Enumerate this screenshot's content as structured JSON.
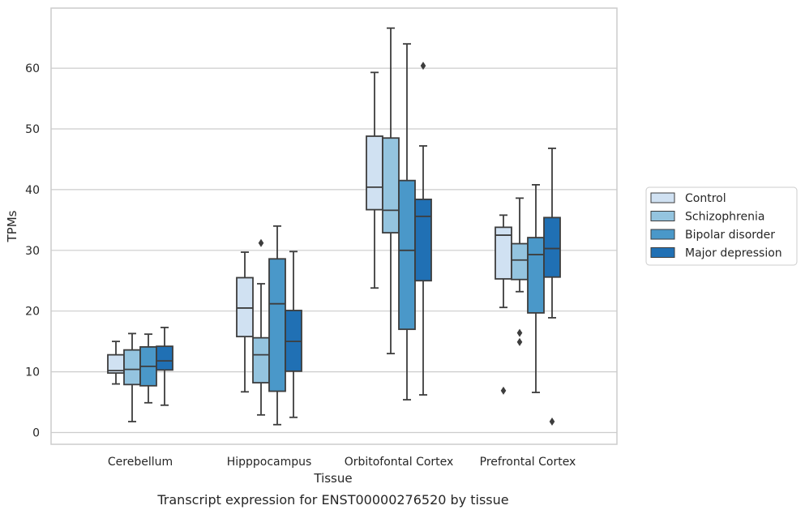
{
  "chart_data": {
    "type": "box",
    "title": "Transcript expression for ENST00000276520 by tissue",
    "xlabel": "Tissue",
    "ylabel": "TPMs",
    "ylim": [
      -2,
      70
    ],
    "yticks": [
      0,
      10,
      20,
      30,
      40,
      50,
      60
    ],
    "grid": "horizontal",
    "legend_position": "right",
    "categories": [
      "Cerebellum",
      "Hipppocampus",
      "Orbitofontal Cortex",
      "Prefrontal Cortex"
    ],
    "series": [
      {
        "name": "Control",
        "color": "#d0e1f2",
        "boxes": [
          {
            "whisker_low": 8.0,
            "q1": 9.8,
            "median": 10.2,
            "q3": 12.8,
            "whisker_high": 15.0,
            "outliers": []
          },
          {
            "whisker_low": 6.7,
            "q1": 15.8,
            "median": 20.5,
            "q3": 25.5,
            "whisker_high": 29.7,
            "outliers": []
          },
          {
            "whisker_low": 23.8,
            "q1": 36.7,
            "median": 40.4,
            "q3": 48.8,
            "whisker_high": 59.3,
            "outliers": []
          },
          {
            "whisker_low": 20.6,
            "q1": 25.3,
            "median": 32.5,
            "q3": 33.8,
            "whisker_high": 35.8,
            "outliers": [
              6.9
            ]
          }
        ]
      },
      {
        "name": "Schizophrenia",
        "color": "#94c4df",
        "boxes": [
          {
            "whisker_low": 1.8,
            "q1": 7.9,
            "median": 10.4,
            "q3": 13.6,
            "whisker_high": 16.3,
            "outliers": []
          },
          {
            "whisker_low": 2.9,
            "q1": 8.2,
            "median": 12.8,
            "q3": 15.6,
            "whisker_high": 24.5,
            "outliers": [
              31.2
            ]
          },
          {
            "whisker_low": 13.0,
            "q1": 32.9,
            "median": 36.6,
            "q3": 48.5,
            "whisker_high": 66.6,
            "outliers": []
          },
          {
            "whisker_low": 23.2,
            "q1": 25.2,
            "median": 28.4,
            "q3": 31.1,
            "whisker_high": 38.6,
            "outliers": [
              16.4,
              14.9
            ]
          }
        ]
      },
      {
        "name": "Bipolar disorder",
        "color": "#4a98c9",
        "boxes": [
          {
            "whisker_low": 4.9,
            "q1": 7.7,
            "median": 10.9,
            "q3": 14.1,
            "whisker_high": 16.2,
            "outliers": []
          },
          {
            "whisker_low": 1.3,
            "q1": 6.8,
            "median": 21.2,
            "q3": 28.6,
            "whisker_high": 34.0,
            "outliers": []
          },
          {
            "whisker_low": 5.4,
            "q1": 17.0,
            "median": 30.0,
            "q3": 41.5,
            "whisker_high": 64.0,
            "outliers": []
          },
          {
            "whisker_low": 6.6,
            "q1": 19.7,
            "median": 29.3,
            "q3": 32.1,
            "whisker_high": 40.8,
            "outliers": []
          }
        ]
      },
      {
        "name": "Major depression",
        "color": "#2070b4",
        "boxes": [
          {
            "whisker_low": 4.5,
            "q1": 10.3,
            "median": 11.8,
            "q3": 14.2,
            "whisker_high": 17.3,
            "outliers": []
          },
          {
            "whisker_low": 2.5,
            "q1": 10.1,
            "median": 15.0,
            "q3": 20.1,
            "whisker_high": 29.8,
            "outliers": []
          },
          {
            "whisker_low": 6.2,
            "q1": 25.0,
            "median": 35.6,
            "q3": 38.4,
            "whisker_high": 47.2,
            "outliers": [
              60.4
            ]
          },
          {
            "whisker_low": 18.9,
            "q1": 25.6,
            "median": 30.3,
            "q3": 35.4,
            "whisker_high": 46.8,
            "outliers": [
              1.8
            ]
          }
        ]
      }
    ]
  }
}
